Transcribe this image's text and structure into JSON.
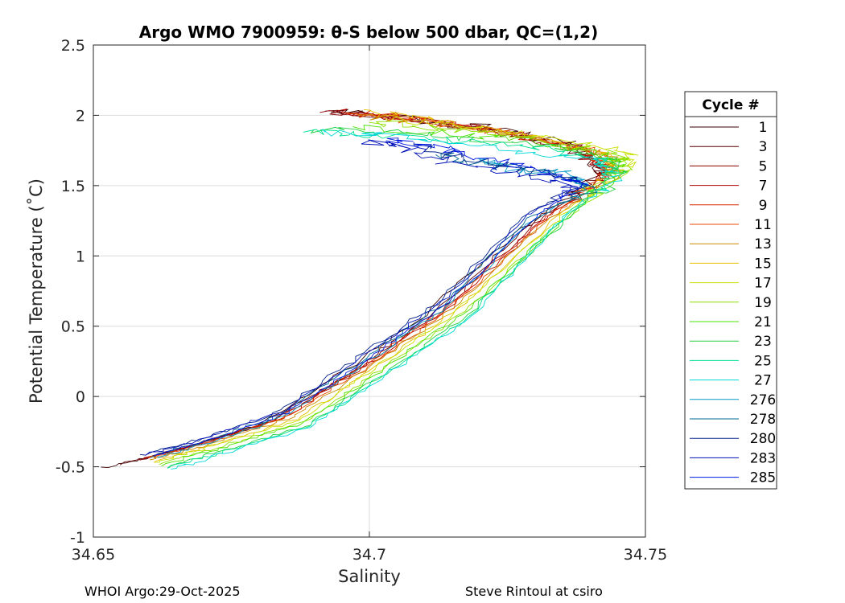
{
  "chart_data": {
    "type": "line",
    "title": "Argo WMO 7900959: θ-S below 500 dbar,  QC=(1,2)",
    "xlabel": "Salinity",
    "ylabel": "Potential Temperature (˚C)",
    "xlim": [
      34.65,
      34.75
    ],
    "ylim": [
      -1,
      2.5
    ],
    "x_ticks": [
      "34.65",
      "34.7",
      "34.75"
    ],
    "y_ticks": [
      "2.5",
      "2",
      "1.5",
      "1",
      "0.5",
      "0",
      "-0.5",
      "-1"
    ],
    "grid": true,
    "legend_title": "Cycle #",
    "legend_position": "right",
    "series": [
      {
        "name": "1",
        "color": "#3a0000",
        "profile": [
          [
            34.652,
            -0.51
          ],
          [
            34.665,
            -0.38
          ],
          [
            34.68,
            -0.2
          ],
          [
            34.695,
            0.17
          ],
          [
            34.71,
            0.58
          ],
          [
            34.728,
            1.2
          ],
          [
            34.741,
            1.58
          ],
          [
            34.738,
            1.78
          ],
          [
            34.725,
            1.89
          ],
          [
            34.71,
            1.97
          ],
          [
            34.693,
            2.02
          ]
        ]
      },
      {
        "name": "3",
        "color": "#5c0000",
        "profile": [
          [
            34.655,
            -0.48
          ],
          [
            34.667,
            -0.36
          ],
          [
            34.682,
            -0.18
          ],
          [
            34.697,
            0.19
          ],
          [
            34.712,
            0.6
          ],
          [
            34.729,
            1.22
          ],
          [
            34.742,
            1.57
          ],
          [
            34.737,
            1.77
          ],
          [
            34.722,
            1.9
          ],
          [
            34.707,
            1.98
          ],
          [
            34.692,
            2.03
          ]
        ]
      },
      {
        "name": "5",
        "color": "#8a0000",
        "profile": [
          [
            34.658,
            -0.45
          ],
          [
            34.668,
            -0.35
          ],
          [
            34.683,
            -0.17
          ],
          [
            34.698,
            0.2
          ],
          [
            34.713,
            0.61
          ],
          [
            34.73,
            1.23
          ],
          [
            34.743,
            1.58
          ],
          [
            34.738,
            1.76
          ],
          [
            34.723,
            1.89
          ],
          [
            34.706,
            1.99
          ],
          [
            34.691,
            2.02
          ]
        ]
      },
      {
        "name": "7",
        "color": "#b30000",
        "profile": [
          [
            34.659,
            -0.44
          ],
          [
            34.669,
            -0.34
          ],
          [
            34.684,
            -0.16
          ],
          [
            34.699,
            0.21
          ],
          [
            34.714,
            0.62
          ],
          [
            34.731,
            1.24
          ],
          [
            34.744,
            1.6
          ],
          [
            34.739,
            1.75
          ],
          [
            34.724,
            1.88
          ],
          [
            34.708,
            1.98
          ],
          [
            34.694,
            2.03
          ]
        ]
      },
      {
        "name": "9",
        "color": "#d62a00",
        "profile": [
          [
            34.66,
            -0.43
          ],
          [
            34.67,
            -0.33
          ],
          [
            34.684,
            -0.15
          ],
          [
            34.699,
            0.22
          ],
          [
            34.714,
            0.63
          ],
          [
            34.731,
            1.25
          ],
          [
            34.744,
            1.59
          ],
          [
            34.74,
            1.74
          ],
          [
            34.726,
            1.87
          ],
          [
            34.71,
            1.96
          ],
          [
            34.695,
            2.02
          ]
        ]
      },
      {
        "name": "11",
        "color": "#e84a00",
        "profile": [
          [
            34.66,
            -0.44
          ],
          [
            34.671,
            -0.33
          ],
          [
            34.685,
            -0.15
          ],
          [
            34.7,
            0.22
          ],
          [
            34.715,
            0.63
          ],
          [
            34.732,
            1.25
          ],
          [
            34.744,
            1.61
          ],
          [
            34.741,
            1.74
          ],
          [
            34.727,
            1.86
          ],
          [
            34.711,
            1.95
          ],
          [
            34.696,
            2.01
          ]
        ]
      },
      {
        "name": "13",
        "color": "#c98a00",
        "profile": [
          [
            34.66,
            -0.45
          ],
          [
            34.671,
            -0.34
          ],
          [
            34.686,
            -0.15
          ],
          [
            34.7,
            0.21
          ],
          [
            34.715,
            0.62
          ],
          [
            34.732,
            1.24
          ],
          [
            34.745,
            1.6
          ],
          [
            34.742,
            1.73
          ],
          [
            34.728,
            1.85
          ],
          [
            34.712,
            1.94
          ],
          [
            34.698,
            2.0
          ]
        ]
      },
      {
        "name": "15",
        "color": "#e6c000",
        "profile": [
          [
            34.661,
            -0.46
          ],
          [
            34.672,
            -0.34
          ],
          [
            34.687,
            -0.16
          ],
          [
            34.701,
            0.21
          ],
          [
            34.716,
            0.62
          ],
          [
            34.733,
            1.24
          ],
          [
            34.745,
            1.61
          ],
          [
            34.743,
            1.73
          ],
          [
            34.73,
            1.85
          ],
          [
            34.714,
            1.95
          ],
          [
            34.699,
            2.04
          ]
        ]
      },
      {
        "name": "17",
        "color": "#c8e000",
        "profile": [
          [
            34.661,
            -0.47
          ],
          [
            34.672,
            -0.35
          ],
          [
            34.687,
            -0.17
          ],
          [
            34.701,
            0.2
          ],
          [
            34.716,
            0.61
          ],
          [
            34.733,
            1.23
          ],
          [
            34.746,
            1.62
          ],
          [
            34.747,
            1.74
          ],
          [
            34.735,
            1.83
          ],
          [
            34.718,
            1.92
          ],
          [
            34.703,
            1.98
          ]
        ]
      },
      {
        "name": "19",
        "color": "#8ee000",
        "profile": [
          [
            34.662,
            -0.48
          ],
          [
            34.673,
            -0.36
          ],
          [
            34.688,
            -0.18
          ],
          [
            34.702,
            0.19
          ],
          [
            34.717,
            0.6
          ],
          [
            34.734,
            1.22
          ],
          [
            34.746,
            1.6
          ],
          [
            34.745,
            1.72
          ],
          [
            34.732,
            1.82
          ],
          [
            34.715,
            1.9
          ],
          [
            34.7,
            1.95
          ]
        ]
      },
      {
        "name": "21",
        "color": "#4ae000",
        "profile": [
          [
            34.662,
            -0.49
          ],
          [
            34.673,
            -0.37
          ],
          [
            34.688,
            -0.19
          ],
          [
            34.702,
            0.18
          ],
          [
            34.717,
            0.59
          ],
          [
            34.734,
            1.21
          ],
          [
            34.745,
            1.59
          ],
          [
            34.744,
            1.71
          ],
          [
            34.73,
            1.81
          ],
          [
            34.712,
            1.88
          ],
          [
            34.697,
            1.92
          ]
        ]
      },
      {
        "name": "23",
        "color": "#20d040",
        "profile": [
          [
            34.663,
            -0.5
          ],
          [
            34.674,
            -0.38
          ],
          [
            34.689,
            -0.2
          ],
          [
            34.703,
            0.17
          ],
          [
            34.718,
            0.58
          ],
          [
            34.734,
            1.2
          ],
          [
            34.745,
            1.58
          ],
          [
            34.743,
            1.7
          ],
          [
            34.728,
            1.8
          ],
          [
            34.709,
            1.87
          ],
          [
            34.69,
            1.9
          ]
        ]
      },
      {
        "name": "25",
        "color": "#00e090",
        "profile": [
          [
            34.663,
            -0.51
          ],
          [
            34.674,
            -0.39
          ],
          [
            34.689,
            -0.21
          ],
          [
            34.703,
            0.16
          ],
          [
            34.718,
            0.57
          ],
          [
            34.733,
            1.19
          ],
          [
            34.744,
            1.57
          ],
          [
            34.742,
            1.69
          ],
          [
            34.727,
            1.79
          ],
          [
            34.705,
            1.85
          ],
          [
            34.688,
            1.88
          ]
        ]
      },
      {
        "name": "27",
        "color": "#00d8d8",
        "profile": [
          [
            34.664,
            -0.52
          ],
          [
            34.674,
            -0.4
          ],
          [
            34.689,
            -0.22
          ],
          [
            34.703,
            0.15
          ],
          [
            34.718,
            0.56
          ],
          [
            34.733,
            1.18
          ],
          [
            34.744,
            1.56
          ],
          [
            34.741,
            1.68
          ],
          [
            34.725,
            1.77
          ],
          [
            34.707,
            1.84
          ],
          [
            34.692,
            1.88
          ]
        ]
      },
      {
        "name": "276",
        "color": "#0098c8",
        "profile": [
          [
            34.661,
            -0.44
          ],
          [
            34.671,
            -0.33
          ],
          [
            34.685,
            -0.14
          ],
          [
            34.699,
            0.23
          ],
          [
            34.714,
            0.64
          ],
          [
            34.73,
            1.26
          ],
          [
            34.74,
            1.5
          ],
          [
            34.737,
            1.58
          ],
          [
            34.725,
            1.62
          ],
          [
            34.72,
            1.68
          ]
        ]
      },
      {
        "name": "278",
        "color": "#006890",
        "profile": [
          [
            34.66,
            -0.43
          ],
          [
            34.67,
            -0.32
          ],
          [
            34.684,
            -0.13
          ],
          [
            34.698,
            0.24
          ],
          [
            34.713,
            0.65
          ],
          [
            34.729,
            1.27
          ],
          [
            34.74,
            1.48
          ],
          [
            34.733,
            1.6
          ],
          [
            34.72,
            1.66
          ],
          [
            34.712,
            1.72
          ]
        ]
      },
      {
        "name": "280",
        "color": "#00208a",
        "profile": [
          [
            34.659,
            -0.42
          ],
          [
            34.669,
            -0.31
          ],
          [
            34.683,
            -0.12
          ],
          [
            34.697,
            0.25
          ],
          [
            34.712,
            0.66
          ],
          [
            34.728,
            1.28
          ],
          [
            34.739,
            1.52
          ],
          [
            34.73,
            1.6
          ],
          [
            34.717,
            1.7
          ],
          [
            34.708,
            1.8
          ]
        ]
      },
      {
        "name": "283",
        "color": "#0010b8",
        "profile": [
          [
            34.66,
            -0.41
          ],
          [
            34.67,
            -0.3
          ],
          [
            34.684,
            -0.11
          ],
          [
            34.698,
            0.26
          ],
          [
            34.713,
            0.67
          ],
          [
            34.729,
            1.29
          ],
          [
            34.738,
            1.5
          ],
          [
            34.728,
            1.57
          ],
          [
            34.715,
            1.66
          ],
          [
            34.706,
            1.77
          ],
          [
            34.7,
            1.82
          ]
        ]
      },
      {
        "name": "285",
        "color": "#0018e0",
        "profile": [
          [
            34.661,
            -0.42
          ],
          [
            34.671,
            -0.31
          ],
          [
            34.685,
            -0.12
          ],
          [
            34.699,
            0.25
          ],
          [
            34.714,
            0.66
          ],
          [
            34.73,
            1.28
          ],
          [
            34.739,
            1.51
          ],
          [
            34.731,
            1.6
          ],
          [
            34.718,
            1.72
          ],
          [
            34.71,
            1.79
          ],
          [
            34.703,
            1.82
          ]
        ]
      }
    ]
  },
  "footer": {
    "left": "WHOI Argo:29-Oct-2025",
    "right": "Steve Rintoul at csiro"
  }
}
